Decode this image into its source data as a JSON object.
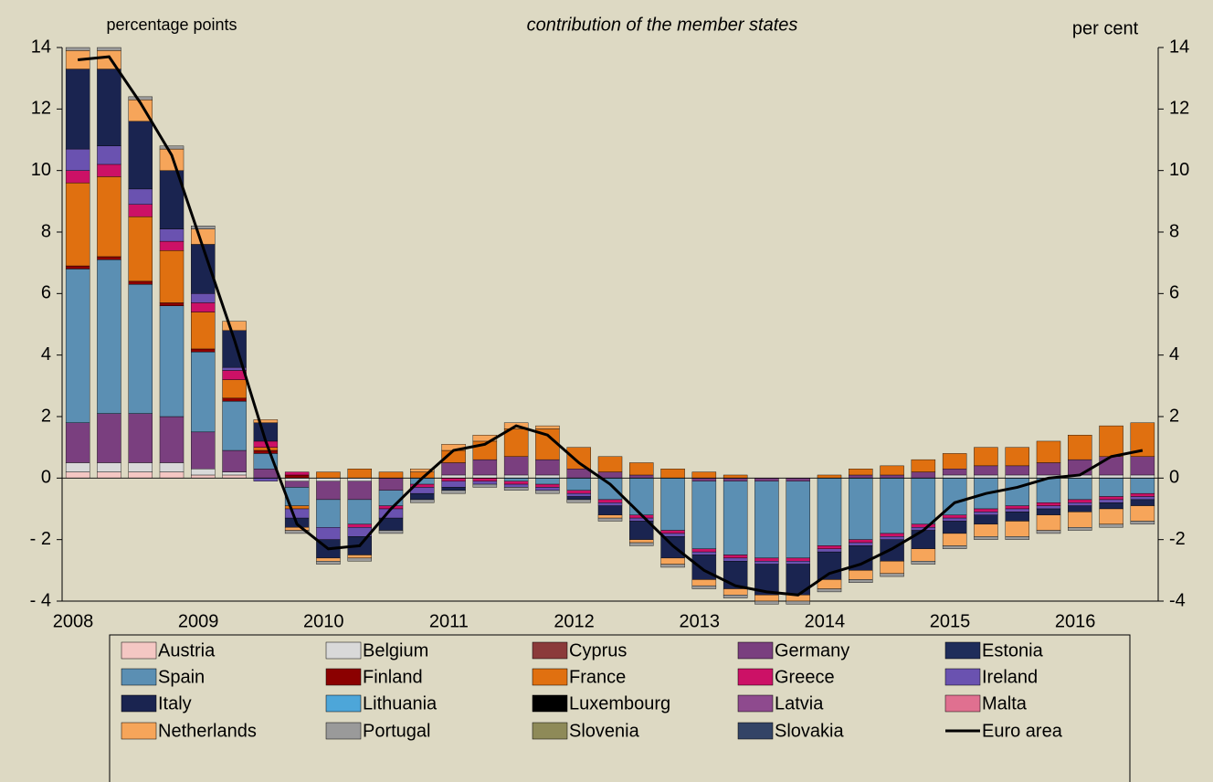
{
  "chart_data": {
    "type": "stacked-bar",
    "subtitle": "contribution of the member states",
    "y_label": "percentage points",
    "y2_label": "per cent",
    "categories": [
      "2008",
      null,
      null,
      null,
      "2009",
      null,
      null,
      null,
      "2010",
      null,
      null,
      null,
      "2011",
      null,
      null,
      null,
      "2012",
      null,
      null,
      null,
      "2013",
      null,
      null,
      null,
      "2014",
      null,
      null,
      null,
      "2015",
      null,
      null,
      null,
      "2016",
      null,
      null
    ],
    "ylim": [
      -4,
      14
    ],
    "yticks": [
      {
        "value": -4,
        "label": "- 4"
      },
      {
        "value": -2,
        "label": "- 2"
      },
      0,
      2,
      4,
      6,
      8,
      10,
      12,
      14
    ],
    "y2lim": [
      -4,
      14
    ],
    "y2ticks": [
      -4,
      -2,
      0,
      2,
      4,
      6,
      8,
      10,
      12,
      14
    ],
    "series": [
      {
        "name": "Austria",
        "color": "#f4c7c3",
        "values": [
          0.2,
          0.2,
          0.2,
          0.2,
          0.1,
          0.1,
          0,
          0,
          0,
          0,
          0,
          0,
          0,
          0,
          0,
          0,
          0,
          0,
          0,
          0,
          0,
          0,
          0,
          0,
          0,
          0,
          0,
          0,
          0,
          0,
          0,
          0,
          0,
          0,
          0
        ]
      },
      {
        "name": "Belgium",
        "color": "#d9d9d9",
        "values": [
          0.3,
          0.3,
          0.3,
          0.3,
          0.2,
          0.1,
          0,
          -0.1,
          -0.1,
          -0.1,
          0,
          0,
          0.1,
          0.1,
          0.1,
          0.1,
          0,
          0,
          0,
          0,
          0,
          0,
          0,
          0,
          0,
          0,
          0,
          0,
          0.1,
          0.1,
          0.1,
          0.1,
          0.1,
          0.1,
          0.1
        ]
      },
      {
        "name": "Cyprus",
        "color": "#8b3a3a",
        "values": [
          0,
          0,
          0,
          0,
          0,
          0,
          0,
          0,
          0,
          0,
          0,
          0,
          0,
          0,
          0,
          0,
          0,
          0,
          0,
          0,
          0,
          0,
          0,
          0,
          0,
          0,
          0,
          0,
          0,
          0,
          0,
          0,
          0,
          0,
          0
        ]
      },
      {
        "name": "Germany",
        "color": "#7a3f7f",
        "values": [
          1.3,
          1.6,
          1.6,
          1.5,
          1.2,
          0.7,
          0.3,
          -0.2,
          -0.6,
          -0.6,
          -0.4,
          0,
          0.4,
          0.5,
          0.6,
          0.5,
          0.3,
          0.2,
          0.1,
          0,
          -0.1,
          -0.1,
          -0.1,
          -0.1,
          0,
          0.1,
          0.1,
          0.2,
          0.2,
          0.3,
          0.3,
          0.4,
          0.5,
          0.6,
          0.6
        ]
      },
      {
        "name": "Estonia",
        "color": "#1f2d5a",
        "values": [
          0,
          0,
          0,
          0,
          0,
          0,
          0,
          0,
          0,
          0,
          0,
          0,
          0,
          0,
          0,
          0,
          0,
          0,
          0,
          0,
          0,
          0,
          0,
          0,
          0,
          0,
          0,
          0,
          0,
          0,
          0,
          0,
          0,
          0,
          0
        ]
      },
      {
        "name": "Spain",
        "color": "#5b8fb3",
        "values": [
          5.0,
          5.0,
          4.2,
          3.6,
          2.6,
          1.6,
          0.5,
          -0.6,
          -0.9,
          -0.8,
          -0.5,
          -0.2,
          0,
          0,
          -0.1,
          -0.2,
          -0.4,
          -0.7,
          -1.2,
          -1.7,
          -2.2,
          -2.4,
          -2.5,
          -2.5,
          -2.2,
          -2.0,
          -1.8,
          -1.5,
          -1.2,
          -1.0,
          -0.9,
          -0.8,
          -0.7,
          -0.6,
          -0.5
        ]
      },
      {
        "name": "Finland",
        "color": "#8b0000",
        "values": [
          0.1,
          0.1,
          0.1,
          0.1,
          0.1,
          0.1,
          0.1,
          0.1,
          0,
          0,
          0,
          0,
          0,
          0,
          0,
          0,
          0,
          0,
          0,
          0,
          0,
          0,
          0,
          0,
          0,
          0,
          0,
          0,
          0,
          0,
          0,
          0,
          0,
          0,
          0
        ]
      },
      {
        "name": "France",
        "color": "#e07010",
        "values": [
          2.7,
          2.6,
          2.1,
          1.7,
          1.2,
          0.6,
          0.1,
          -0.1,
          0.2,
          0.3,
          0.2,
          0.2,
          0.4,
          0.6,
          0.9,
          1.0,
          0.7,
          0.5,
          0.4,
          0.3,
          0.2,
          0.1,
          0,
          0,
          0.1,
          0.2,
          0.3,
          0.4,
          0.5,
          0.6,
          0.6,
          0.7,
          0.8,
          1.0,
          1.1
        ]
      },
      {
        "name": "Greece",
        "color": "#cc1166",
        "values": [
          0.4,
          0.4,
          0.4,
          0.3,
          0.3,
          0.3,
          0.2,
          0.1,
          0,
          -0.1,
          -0.1,
          -0.1,
          -0.1,
          -0.1,
          -0.1,
          -0.1,
          -0.1,
          -0.1,
          -0.1,
          -0.1,
          -0.1,
          -0.1,
          -0.1,
          -0.1,
          -0.1,
          -0.1,
          -0.1,
          -0.1,
          -0.1,
          -0.1,
          -0.1,
          -0.1,
          -0.1,
          -0.1,
          -0.1
        ]
      },
      {
        "name": "Ireland",
        "color": "#6a52b0",
        "values": [
          0.7,
          0.6,
          0.5,
          0.4,
          0.3,
          0.1,
          -0.1,
          -0.3,
          -0.4,
          -0.3,
          -0.3,
          -0.2,
          -0.2,
          -0.1,
          -0.1,
          -0.1,
          -0.1,
          -0.1,
          -0.1,
          -0.1,
          -0.1,
          -0.1,
          -0.1,
          -0.1,
          -0.1,
          -0.1,
          -0.1,
          -0.1,
          -0.1,
          -0.1,
          -0.1,
          -0.1,
          -0.1,
          -0.1,
          -0.1
        ]
      },
      {
        "name": "Italy",
        "color": "#1a2450",
        "values": [
          2.6,
          2.5,
          2.2,
          1.9,
          1.6,
          1.2,
          0.6,
          -0.3,
          -0.6,
          -0.6,
          -0.4,
          -0.2,
          -0.1,
          0,
          0,
          0,
          -0.1,
          -0.3,
          -0.6,
          -0.7,
          -0.8,
          -0.9,
          -1.0,
          -1.0,
          -0.9,
          -0.8,
          -0.7,
          -0.6,
          -0.4,
          -0.3,
          -0.3,
          -0.2,
          -0.2,
          -0.2,
          -0.2
        ]
      },
      {
        "name": "Lithuania",
        "color": "#4da6d9",
        "values": [
          0,
          0,
          0,
          0,
          0,
          0,
          0,
          0,
          0,
          0,
          0,
          0,
          0,
          0,
          0,
          0,
          0,
          0,
          0,
          0,
          0,
          0,
          0,
          0,
          0,
          0,
          0,
          0,
          0,
          0,
          0,
          0,
          0,
          0,
          0
        ]
      },
      {
        "name": "Luxembourg",
        "color": "#000000",
        "values": [
          0,
          0,
          0,
          0,
          0,
          0,
          0,
          0,
          0,
          0,
          0,
          0,
          0,
          0,
          0,
          0,
          0,
          0,
          0,
          0,
          0,
          0,
          0,
          0,
          0,
          0,
          0,
          0,
          0,
          0,
          0,
          0,
          0,
          0,
          0
        ]
      },
      {
        "name": "Latvia",
        "color": "#8e4a8e",
        "values": [
          0,
          0,
          0,
          0,
          0,
          0,
          0,
          0,
          0,
          0,
          0,
          0,
          0,
          0,
          0,
          0,
          0,
          0,
          0,
          0,
          0,
          0,
          0,
          0,
          0,
          0,
          0,
          0,
          0,
          0,
          0,
          0,
          0,
          0,
          0
        ]
      },
      {
        "name": "Malta",
        "color": "#e07090",
        "values": [
          0,
          0,
          0,
          0,
          0,
          0,
          0,
          0,
          0,
          0,
          0,
          0,
          0,
          0,
          0,
          0,
          0,
          0,
          0,
          0,
          0,
          0,
          0,
          0,
          0,
          0,
          0,
          0,
          0,
          0,
          0,
          0,
          0,
          0,
          0
        ]
      },
      {
        "name": "Netherlands",
        "color": "#f6a55a",
        "values": [
          0.6,
          0.6,
          0.7,
          0.7,
          0.5,
          0.3,
          0.1,
          -0.1,
          -0.1,
          -0.1,
          0,
          0.1,
          0.2,
          0.2,
          0.2,
          0.1,
          0,
          -0.1,
          -0.1,
          -0.2,
          -0.2,
          -0.2,
          -0.2,
          -0.2,
          -0.3,
          -0.3,
          -0.4,
          -0.4,
          -0.4,
          -0.4,
          -0.5,
          -0.5,
          -0.5,
          -0.5,
          -0.5
        ]
      },
      {
        "name": "Portugal",
        "color": "#9a9a9a",
        "values": [
          0.1,
          0.1,
          0.1,
          0.1,
          0.1,
          0,
          0,
          -0.1,
          -0.1,
          -0.1,
          -0.1,
          -0.1,
          -0.1,
          -0.1,
          -0.1,
          -0.1,
          -0.1,
          -0.1,
          -0.1,
          -0.1,
          -0.1,
          -0.1,
          -0.1,
          -0.1,
          -0.1,
          -0.1,
          -0.1,
          -0.1,
          -0.1,
          -0.1,
          -0.1,
          -0.1,
          -0.1,
          -0.1,
          -0.1
        ]
      },
      {
        "name": "Slovenia",
        "color": "#8e8a58",
        "values": [
          0,
          0,
          0,
          0,
          0,
          0,
          0,
          0,
          0,
          0,
          0,
          0,
          0,
          0,
          0,
          0,
          0,
          0,
          0,
          0,
          0,
          0,
          0,
          0,
          0,
          0,
          0,
          0,
          0,
          0,
          0,
          0,
          0,
          0,
          0
        ]
      },
      {
        "name": "Slovakia",
        "color": "#334466",
        "values": [
          0,
          0,
          0,
          0,
          0,
          0,
          0,
          0,
          0,
          0,
          0,
          0,
          0,
          0,
          0,
          0,
          0,
          0,
          0,
          0,
          0,
          0,
          0,
          0,
          0,
          0,
          0,
          0,
          0,
          0,
          0,
          0,
          0,
          0,
          0
        ]
      },
      {
        "name": "Euro area",
        "color": "#000000",
        "type": "line",
        "axis": "y2",
        "values": [
          13.6,
          13.7,
          12.2,
          10.5,
          7.5,
          4.5,
          1.2,
          -1.5,
          -2.3,
          -2.2,
          -1.0,
          0.0,
          0.9,
          1.1,
          1.7,
          1.4,
          0.5,
          -0.2,
          -1.2,
          -2.2,
          -3.0,
          -3.5,
          -3.7,
          -3.8,
          -3.1,
          -2.8,
          -2.3,
          -1.7,
          -0.8,
          -0.5,
          -0.3,
          0.0,
          0.1,
          0.7,
          0.9
        ]
      }
    ]
  }
}
